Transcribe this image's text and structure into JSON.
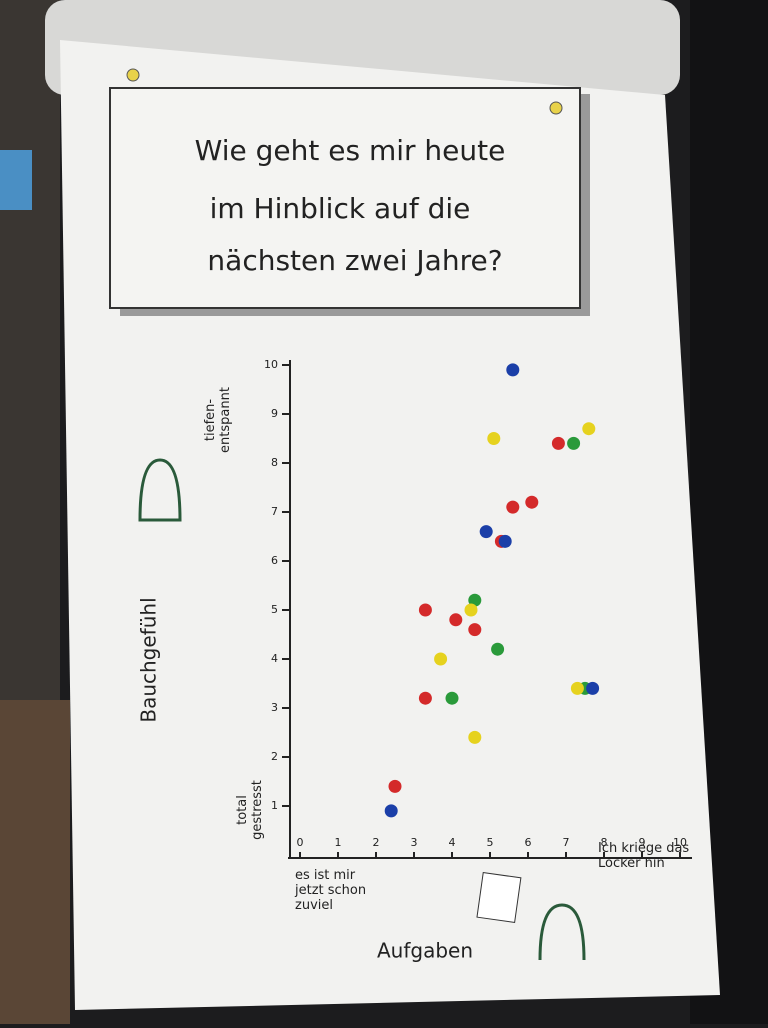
{
  "chart_data": {
    "type": "scatter",
    "title_lines": [
      "Wie geht es mir heute",
      "im Hinblick auf die",
      "nächsten zwei Jahre?"
    ],
    "x_label": "Aufgaben",
    "y_label": "Bauchgefühl",
    "y_annotations": {
      "top": [
        "tiefen-",
        "entspannt"
      ],
      "bottom": [
        "total",
        "gestresst"
      ]
    },
    "x_annotations": {
      "left": [
        "es ist mir",
        "jetzt schon",
        "zuviel"
      ],
      "right": [
        "Ich kriege das",
        "Locker hin"
      ]
    },
    "xlim": [
      0,
      10
    ],
    "ylim": [
      0,
      10
    ],
    "xticks": [
      0,
      1,
      2,
      3,
      4,
      5,
      6,
      7,
      8,
      9,
      10
    ],
    "yticks": [
      1,
      2,
      3,
      4,
      5,
      6,
      7,
      8,
      9,
      10
    ],
    "series": [
      {
        "color": "#d42a2a",
        "x": [
          6.8,
          5.6,
          6.1,
          5.3,
          3.3,
          4.1,
          4.6,
          3.3,
          2.5
        ],
        "values": [
          8.4,
          7.1,
          7.2,
          6.4,
          5.0,
          4.8,
          4.6,
          3.2,
          1.4
        ]
      },
      {
        "color": "#2a9a3a",
        "x": [
          7.2,
          4.6,
          5.2,
          4.0,
          7.5
        ],
        "values": [
          8.4,
          5.2,
          4.2,
          3.2,
          3.4
        ]
      },
      {
        "color": "#1b3fa8",
        "x": [
          5.6,
          4.9,
          5.4,
          7.7,
          2.4
        ],
        "values": [
          9.9,
          6.6,
          6.4,
          3.4,
          0.9
        ]
      },
      {
        "color": "#e6d21e",
        "x": [
          5.1,
          7.6,
          4.5,
          3.7,
          7.3,
          4.6
        ],
        "values": [
          8.5,
          8.7,
          5.0,
          4.0,
          3.4,
          2.4
        ]
      }
    ]
  }
}
